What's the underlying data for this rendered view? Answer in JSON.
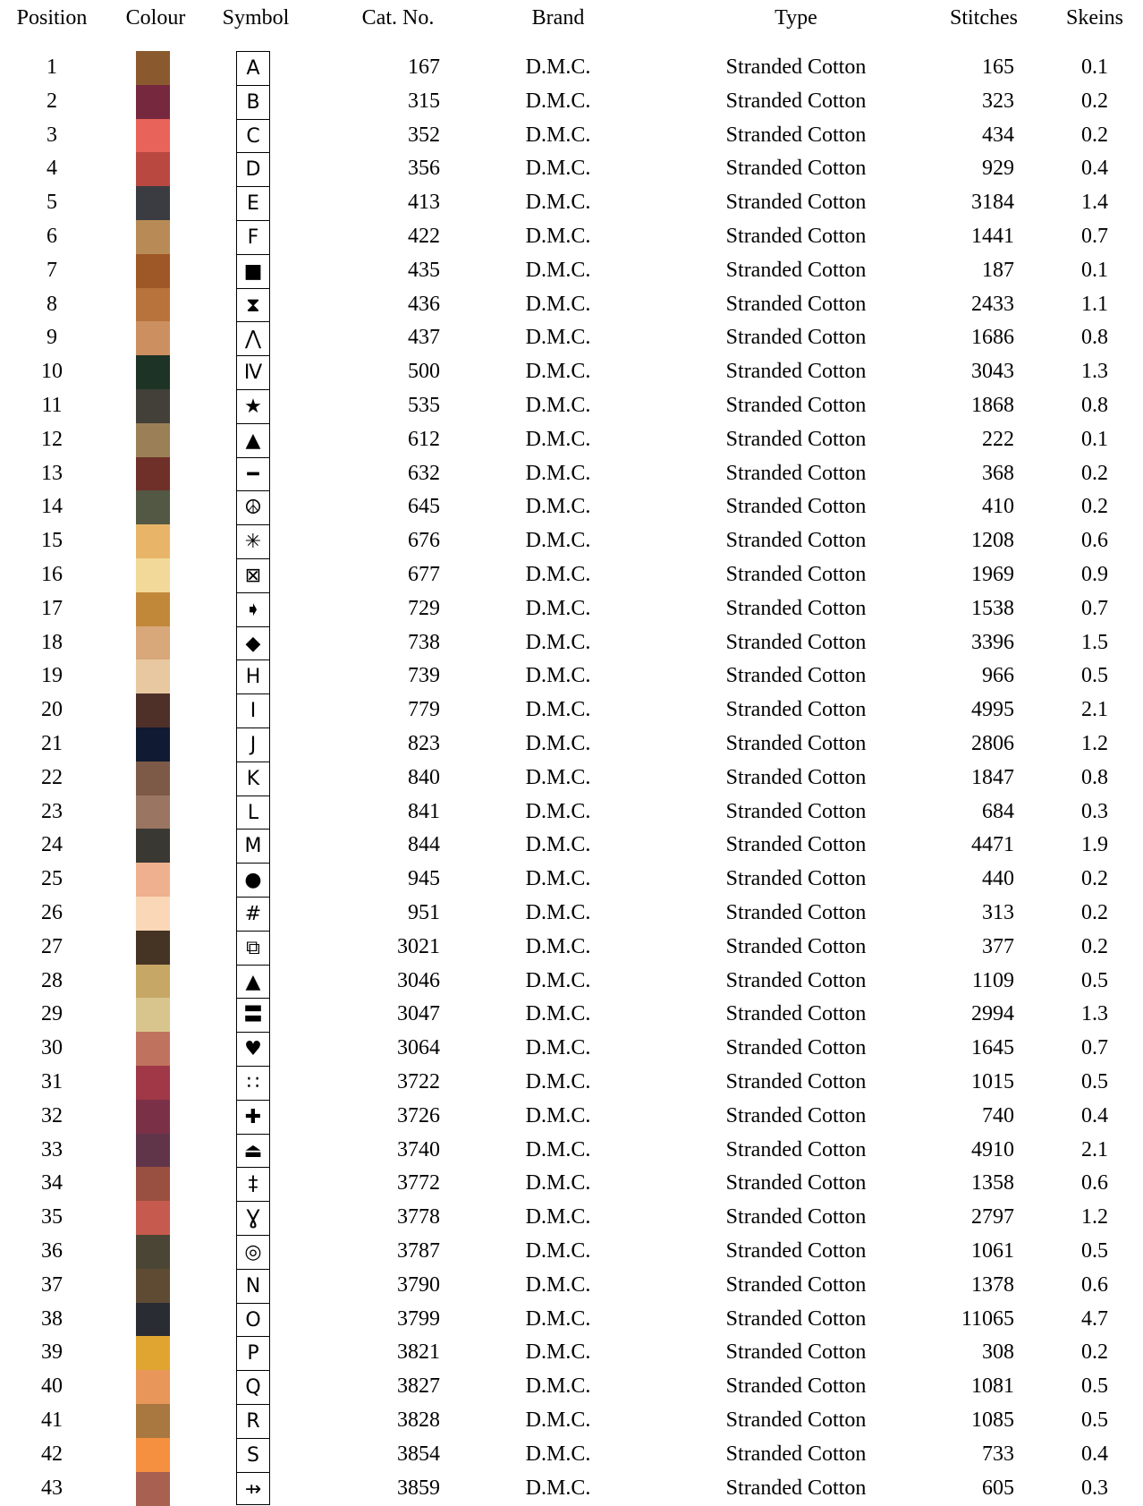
{
  "headers": {
    "position": "Position",
    "colour": "Colour",
    "symbol": "Symbol",
    "cat_no": "Cat. No.",
    "brand": "Brand",
    "type": "Type",
    "stitches": "Stitches",
    "skeins": "Skeins"
  },
  "rows": [
    {
      "position": "1",
      "color": "#8a5a2e",
      "symbol": "A",
      "cat_no": "167",
      "brand": "D.M.C.",
      "type": "Stranded Cotton",
      "stitches": "165",
      "skeins": "0.1"
    },
    {
      "position": "2",
      "color": "#76283e",
      "symbol": "B",
      "cat_no": "315",
      "brand": "D.M.C.",
      "type": "Stranded Cotton",
      "stitches": "323",
      "skeins": "0.2"
    },
    {
      "position": "3",
      "color": "#e8635a",
      "symbol": "C",
      "cat_no": "352",
      "brand": "D.M.C.",
      "type": "Stranded Cotton",
      "stitches": "434",
      "skeins": "0.2"
    },
    {
      "position": "4",
      "color": "#b94840",
      "symbol": "D",
      "cat_no": "356",
      "brand": "D.M.C.",
      "type": "Stranded Cotton",
      "stitches": "929",
      "skeins": "0.4"
    },
    {
      "position": "5",
      "color": "#3b3c42",
      "symbol": "E",
      "cat_no": "413",
      "brand": "D.M.C.",
      "type": "Stranded Cotton",
      "stitches": "3184",
      "skeins": "1.4"
    },
    {
      "position": "6",
      "color": "#b88b56",
      "symbol": "F",
      "cat_no": "422",
      "brand": "D.M.C.",
      "type": "Stranded Cotton",
      "stitches": "1441",
      "skeins": "0.7"
    },
    {
      "position": "7",
      "color": "#9e5726",
      "symbol": "■",
      "cat_no": "435",
      "brand": "D.M.C.",
      "type": "Stranded Cotton",
      "stitches": "187",
      "skeins": "0.1"
    },
    {
      "position": "8",
      "color": "#b8733c",
      "symbol": "⧗",
      "cat_no": "436",
      "brand": "D.M.C.",
      "type": "Stranded Cotton",
      "stitches": "2433",
      "skeins": "1.1"
    },
    {
      "position": "9",
      "color": "#cc9060",
      "symbol": "⋀",
      "cat_no": "437",
      "brand": "D.M.C.",
      "type": "Stranded Cotton",
      "stitches": "1686",
      "skeins": "0.8"
    },
    {
      "position": "10",
      "color": "#1d3326",
      "symbol": "Ⅳ",
      "cat_no": "500",
      "brand": "D.M.C.",
      "type": "Stranded Cotton",
      "stitches": "3043",
      "skeins": "1.3"
    },
    {
      "position": "11",
      "color": "#424038",
      "symbol": "★",
      "cat_no": "535",
      "brand": "D.M.C.",
      "type": "Stranded Cotton",
      "stitches": "1868",
      "skeins": "0.8"
    },
    {
      "position": "12",
      "color": "#9a7f57",
      "symbol": "▲",
      "cat_no": "612",
      "brand": "D.M.C.",
      "type": "Stranded Cotton",
      "stitches": "222",
      "skeins": "0.1"
    },
    {
      "position": "13",
      "color": "#6e3029",
      "symbol": "━",
      "cat_no": "632",
      "brand": "D.M.C.",
      "type": "Stranded Cotton",
      "stitches": "368",
      "skeins": "0.2"
    },
    {
      "position": "14",
      "color": "#535845",
      "symbol": "☮",
      "cat_no": "645",
      "brand": "D.M.C.",
      "type": "Stranded Cotton",
      "stitches": "410",
      "skeins": "0.2"
    },
    {
      "position": "15",
      "color": "#e8b568",
      "symbol": "✳",
      "cat_no": "676",
      "brand": "D.M.C.",
      "type": "Stranded Cotton",
      "stitches": "1208",
      "skeins": "0.6"
    },
    {
      "position": "16",
      "color": "#f2d99a",
      "symbol": "⊠",
      "cat_no": "677",
      "brand": "D.M.C.",
      "type": "Stranded Cotton",
      "stitches": "1969",
      "skeins": "0.9"
    },
    {
      "position": "17",
      "color": "#c2883a",
      "symbol": "➧",
      "cat_no": "729",
      "brand": "D.M.C.",
      "type": "Stranded Cotton",
      "stitches": "1538",
      "skeins": "0.7"
    },
    {
      "position": "18",
      "color": "#d8a87a",
      "symbol": "◆",
      "cat_no": "738",
      "brand": "D.M.C.",
      "type": "Stranded Cotton",
      "stitches": "3396",
      "skeins": "1.5"
    },
    {
      "position": "19",
      "color": "#e8c8a0",
      "symbol": "H",
      "cat_no": "739",
      "brand": "D.M.C.",
      "type": "Stranded Cotton",
      "stitches": "966",
      "skeins": "0.5"
    },
    {
      "position": "20",
      "color": "#4f3029",
      "symbol": "I",
      "cat_no": "779",
      "brand": "D.M.C.",
      "type": "Stranded Cotton",
      "stitches": "4995",
      "skeins": "2.1"
    },
    {
      "position": "21",
      "color": "#111a33",
      "symbol": "J",
      "cat_no": "823",
      "brand": "D.M.C.",
      "type": "Stranded Cotton",
      "stitches": "2806",
      "skeins": "1.2"
    },
    {
      "position": "22",
      "color": "#7c5a47",
      "symbol": "K",
      "cat_no": "840",
      "brand": "D.M.C.",
      "type": "Stranded Cotton",
      "stitches": "1847",
      "skeins": "0.8"
    },
    {
      "position": "23",
      "color": "#9a7562",
      "symbol": "L",
      "cat_no": "841",
      "brand": "D.M.C.",
      "type": "Stranded Cotton",
      "stitches": "684",
      "skeins": "0.3"
    },
    {
      "position": "24",
      "color": "#393833",
      "symbol": "M",
      "cat_no": "844",
      "brand": "D.M.C.",
      "type": "Stranded Cotton",
      "stitches": "4471",
      "skeins": "1.9"
    },
    {
      "position": "25",
      "color": "#eeb08e",
      "symbol": "●",
      "cat_no": "945",
      "brand": "D.M.C.",
      "type": "Stranded Cotton",
      "stitches": "440",
      "skeins": "0.2"
    },
    {
      "position": "26",
      "color": "#fad7b6",
      "symbol": "#",
      "cat_no": "951",
      "brand": "D.M.C.",
      "type": "Stranded Cotton",
      "stitches": "313",
      "skeins": "0.2"
    },
    {
      "position": "27",
      "color": "#453324",
      "symbol": "⧉",
      "cat_no": "3021",
      "brand": "D.M.C.",
      "type": "Stranded Cotton",
      "stitches": "377",
      "skeins": "0.2"
    },
    {
      "position": "28",
      "color": "#c6a765",
      "symbol": "▲",
      "cat_no": "3046",
      "brand": "D.M.C.",
      "type": "Stranded Cotton",
      "stitches": "1109",
      "skeins": "0.5"
    },
    {
      "position": "29",
      "color": "#d8c58d",
      "symbol": "〓",
      "cat_no": "3047",
      "brand": "D.M.C.",
      "type": "Stranded Cotton",
      "stitches": "2994",
      "skeins": "1.3"
    },
    {
      "position": "30",
      "color": "#bf735e",
      "symbol": "♥",
      "cat_no": "3064",
      "brand": "D.M.C.",
      "type": "Stranded Cotton",
      "stitches": "1645",
      "skeins": "0.7"
    },
    {
      "position": "31",
      "color": "#a03848",
      "symbol": "∷",
      "cat_no": "3722",
      "brand": "D.M.C.",
      "type": "Stranded Cotton",
      "stitches": "1015",
      "skeins": "0.5"
    },
    {
      "position": "32",
      "color": "#7a3148",
      "symbol": "✚",
      "cat_no": "3726",
      "brand": "D.M.C.",
      "type": "Stranded Cotton",
      "stitches": "740",
      "skeins": "0.4"
    },
    {
      "position": "33",
      "color": "#60354a",
      "symbol": "⏏",
      "cat_no": "3740",
      "brand": "D.M.C.",
      "type": "Stranded Cotton",
      "stitches": "4910",
      "skeins": "2.1"
    },
    {
      "position": "34",
      "color": "#9a5040",
      "symbol": "‡",
      "cat_no": "3772",
      "brand": "D.M.C.",
      "type": "Stranded Cotton",
      "stitches": "1358",
      "skeins": "0.6"
    },
    {
      "position": "35",
      "color": "#c65a4e",
      "symbol": "Ɣ",
      "cat_no": "3778",
      "brand": "D.M.C.",
      "type": "Stranded Cotton",
      "stitches": "2797",
      "skeins": "1.2"
    },
    {
      "position": "36",
      "color": "#4a4534",
      "symbol": "◎",
      "cat_no": "3787",
      "brand": "D.M.C.",
      "type": "Stranded Cotton",
      "stitches": "1061",
      "skeins": "0.5"
    },
    {
      "position": "37",
      "color": "#5f4b33",
      "symbol": "N",
      "cat_no": "3790",
      "brand": "D.M.C.",
      "type": "Stranded Cotton",
      "stitches": "1378",
      "skeins": "0.6"
    },
    {
      "position": "38",
      "color": "#2a2c33",
      "symbol": "O",
      "cat_no": "3799",
      "brand": "D.M.C.",
      "type": "Stranded Cotton",
      "stitches": "11065",
      "skeins": "4.7"
    },
    {
      "position": "39",
      "color": "#e0a530",
      "symbol": "P",
      "cat_no": "3821",
      "brand": "D.M.C.",
      "type": "Stranded Cotton",
      "stitches": "308",
      "skeins": "0.2"
    },
    {
      "position": "40",
      "color": "#e8965a",
      "symbol": "Q",
      "cat_no": "3827",
      "brand": "D.M.C.",
      "type": "Stranded Cotton",
      "stitches": "1081",
      "skeins": "0.5"
    },
    {
      "position": "41",
      "color": "#a87840",
      "symbol": "R",
      "cat_no": "3828",
      "brand": "D.M.C.",
      "type": "Stranded Cotton",
      "stitches": "1085",
      "skeins": "0.5"
    },
    {
      "position": "42",
      "color": "#f59040",
      "symbol": "S",
      "cat_no": "3854",
      "brand": "D.M.C.",
      "type": "Stranded Cotton",
      "stitches": "733",
      "skeins": "0.4"
    },
    {
      "position": "43",
      "color": "#a86050",
      "symbol": "⇸",
      "cat_no": "3859",
      "brand": "D.M.C.",
      "type": "Stranded Cotton",
      "stitches": "605",
      "skeins": "0.3"
    }
  ]
}
